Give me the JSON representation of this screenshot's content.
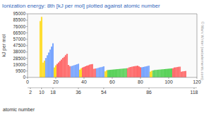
{
  "chart_data": {
    "type": "bar",
    "title": "Ionization energy: 8th [kJ per mol] plotted against atomic number",
    "y_label": "kJ per mol",
    "x_label": "atomic number",
    "annotations": [
      "© Mark Winter (webelements.com)"
    ],
    "x": [
      9,
      10,
      11,
      12,
      13,
      14,
      15,
      16,
      17,
      18,
      19,
      20,
      21,
      22,
      23,
      24,
      25,
      26,
      27,
      28,
      29,
      30,
      31,
      32,
      33,
      34,
      35,
      36,
      37,
      38,
      39,
      40,
      41,
      42,
      43,
      44,
      45,
      46,
      47,
      48,
      49,
      50,
      51,
      52,
      53,
      54,
      55,
      56,
      57,
      58,
      59,
      60,
      61,
      62,
      63,
      64,
      65,
      66,
      67,
      68,
      69,
      70,
      71,
      72,
      73,
      74,
      75,
      76,
      77,
      78,
      79,
      80,
      81,
      82,
      83,
      84,
      85,
      86,
      87,
      88,
      89,
      90,
      91,
      92,
      93,
      94,
      95,
      96,
      97,
      98,
      99,
      100,
      101,
      102,
      103,
      104,
      105,
      106,
      107,
      108,
      109,
      110,
      111,
      112
    ],
    "values": [
      84200,
      90500,
      22070,
      25026,
      28932,
      33022,
      37170,
      41624,
      46012,
      50938,
      14831,
      17995,
      20114,
      22233,
      24457,
      26635,
      29005,
      30661,
      33292,
      35252,
      18571,
      16731,
      16800,
      17394,
      18212,
      18801,
      19624,
      20406,
      11562,
      13655,
      14800,
      15690,
      16562,
      17495,
      18000,
      19040,
      19609,
      19845,
      12780,
      13220,
      13510,
      14130,
      14800,
      15253,
      15766,
      16514,
      9000,
      10600,
      11000,
      11200,
      11400,
      11600,
      11800,
      12000,
      12200,
      12400,
      12600,
      12800,
      13000,
      13200,
      13400,
      13600,
      13800,
      15000,
      15500,
      16000,
      16500,
      16800,
      17100,
      17500,
      16400,
      15200,
      15090,
      15520,
      16000,
      16500,
      17000,
      17494,
      8600,
      9900,
      10500,
      11000,
      11200,
      11400,
      11600,
      11800,
      12000,
      12200,
      12400,
      12600,
      12800,
      13000,
      13200,
      13400,
      13600,
      14800,
      15000,
      15400,
      15800,
      16000,
      8500,
      9000,
      9300,
      9600
    ],
    "colors": [
      "#FFD700",
      "#FFD700",
      "#FFD700",
      "#FFD700",
      "#6699FF",
      "#6699FF",
      "#6699FF",
      "#6699FF",
      "#6699FF",
      "#6699FF",
      "#FFD700",
      "#FFD700",
      "#FF5555",
      "#FF5555",
      "#FF5555",
      "#FF5555",
      "#FF5555",
      "#FF5555",
      "#FF5555",
      "#FF5555",
      "#FF5555",
      "#FF5555",
      "#6699FF",
      "#6699FF",
      "#6699FF",
      "#6699FF",
      "#6699FF",
      "#6699FF",
      "#FFD700",
      "#FFD700",
      "#FF5555",
      "#FF5555",
      "#FF5555",
      "#FF5555",
      "#FF5555",
      "#FF5555",
      "#FF5555",
      "#FF5555",
      "#FF5555",
      "#FF5555",
      "#6699FF",
      "#6699FF",
      "#6699FF",
      "#6699FF",
      "#6699FF",
      "#6699FF",
      "#FFD700",
      "#FFD700",
      "#44CC44",
      "#44CC44",
      "#44CC44",
      "#44CC44",
      "#44CC44",
      "#44CC44",
      "#44CC44",
      "#44CC44",
      "#44CC44",
      "#44CC44",
      "#44CC44",
      "#44CC44",
      "#44CC44",
      "#44CC44",
      "#FF5555",
      "#FF5555",
      "#FF5555",
      "#FF5555",
      "#FF5555",
      "#FF5555",
      "#FF5555",
      "#FF5555",
      "#FF5555",
      "#FF5555",
      "#6699FF",
      "#6699FF",
      "#6699FF",
      "#6699FF",
      "#6699FF",
      "#6699FF",
      "#FFD700",
      "#FFD700",
      "#44CC44",
      "#44CC44",
      "#44CC44",
      "#44CC44",
      "#44CC44",
      "#44CC44",
      "#44CC44",
      "#44CC44",
      "#44CC44",
      "#44CC44",
      "#44CC44",
      "#44CC44",
      "#44CC44",
      "#44CC44",
      "#FF5555",
      "#FF5555",
      "#FF5555",
      "#FF5555",
      "#FF5555",
      "#FF5555",
      "#FF5555",
      "#FF5555",
      "#FF5555",
      "#FF5555"
    ],
    "xlim": [
      0,
      120
    ],
    "xticks": [
      0,
      20,
      40,
      60,
      80,
      100,
      120
    ],
    "x2ticks": [
      2,
      10,
      18,
      36,
      54,
      86,
      118
    ],
    "ylim": [
      0,
      95000
    ],
    "yticks": [
      0,
      9500,
      19000,
      28500,
      38000,
      47500,
      57000,
      66500,
      76000,
      85500,
      95000
    ],
    "grid": false
  }
}
